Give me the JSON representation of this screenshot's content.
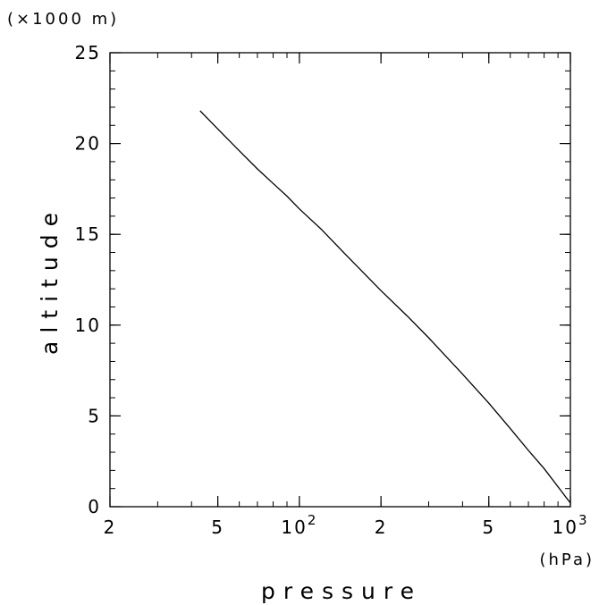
{
  "chart_data": {
    "type": "line",
    "xlabel": "pressure",
    "ylabel": "altitude",
    "x_unit": "(hPa)",
    "y_unit": "(×1000 m)",
    "x_scale": "log",
    "xlim": [
      20,
      1000
    ],
    "ylim": [
      0,
      25
    ],
    "x_ticks": [
      {
        "value": 20,
        "label": "2"
      },
      {
        "value": 50,
        "label": "5"
      },
      {
        "value": 100,
        "label": "10",
        "sup": "2"
      },
      {
        "value": 200,
        "label": "2"
      },
      {
        "value": 500,
        "label": "5"
      },
      {
        "value": 1000,
        "label": "10",
        "sup": "3"
      }
    ],
    "y_ticks": [
      {
        "value": 0,
        "label": "0"
      },
      {
        "value": 5,
        "label": "5"
      },
      {
        "value": 10,
        "label": "10"
      },
      {
        "value": 15,
        "label": "15"
      },
      {
        "value": 20,
        "label": "20"
      },
      {
        "value": 25,
        "label": "25"
      }
    ],
    "grid": false,
    "series": [
      {
        "x": [
          43,
          50,
          60,
          70,
          80,
          90,
          100,
          120,
          150,
          200,
          250,
          300,
          400,
          500,
          600,
          700,
          800,
          900,
          1000
        ],
        "y": [
          21.8,
          20.8,
          19.6,
          18.6,
          17.8,
          17.1,
          16.4,
          15.3,
          13.8,
          11.9,
          10.5,
          9.3,
          7.3,
          5.7,
          4.3,
          3.1,
          2.1,
          1.1,
          0.2
        ],
        "color": "#000000"
      }
    ]
  }
}
